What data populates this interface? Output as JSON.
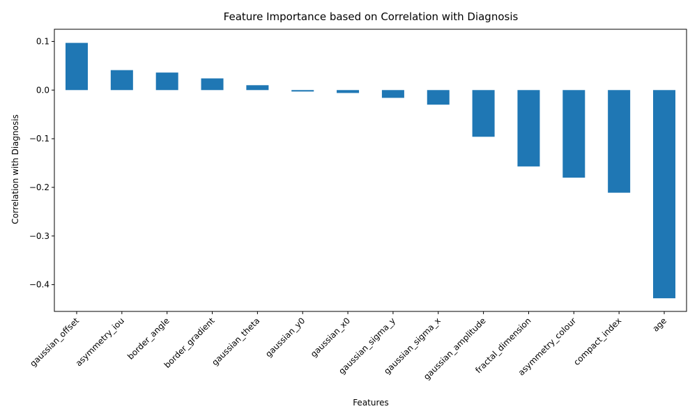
{
  "chart_data": {
    "type": "bar",
    "title": "Feature Importance based on Correlation with Diagnosis",
    "xlabel": "Features",
    "ylabel": "Correlation with Diagnosis",
    "categories": [
      "gaussian_offset",
      "asymmetry_iou",
      "border_angle",
      "border_gradient",
      "gaussian_theta",
      "gaussian_y0",
      "gaussian_x0",
      "gaussian_sigma_y",
      "gaussian_sigma_x",
      "gaussian_amplitude",
      "fractal_dimension",
      "asymmetry_colour",
      "compact_index",
      "age"
    ],
    "values": [
      0.097,
      0.041,
      0.036,
      0.024,
      0.01,
      -0.003,
      -0.006,
      -0.016,
      -0.03,
      -0.096,
      -0.157,
      -0.18,
      -0.211,
      -0.428
    ],
    "ylim": [
      -0.455,
      0.125
    ],
    "yticks": [
      0.1,
      0.0,
      -0.1,
      -0.2,
      -0.3,
      -0.4
    ],
    "ytick_labels": [
      "0.1",
      "0.0",
      "−0.1",
      "−0.2",
      "−0.3",
      "−0.4"
    ],
    "bar_color": "#1f77b4",
    "grid": false,
    "legend": "none"
  }
}
